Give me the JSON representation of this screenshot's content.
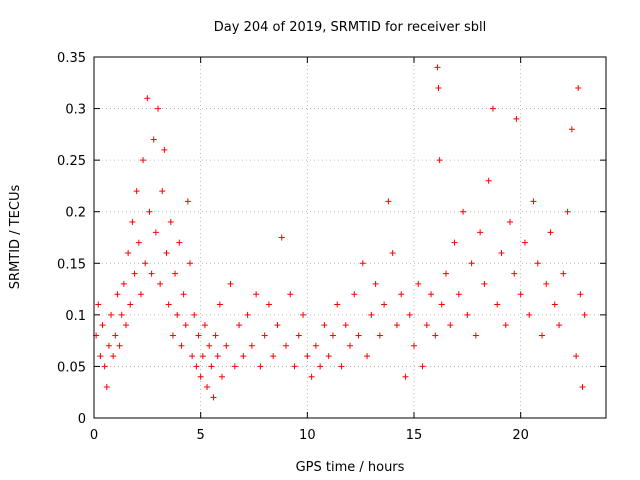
{
  "chart_data": {
    "type": "scatter",
    "title": "Day 204 of 2019, SRMTID for receiver sbll",
    "xlabel": "GPS time / hours",
    "ylabel": "SRMTID / TECUs",
    "xlim": [
      0,
      24
    ],
    "ylim": [
      0,
      0.35
    ],
    "xticks": [
      0,
      5,
      10,
      15,
      20
    ],
    "xtick_labels": [
      "0",
      "5",
      "10",
      "15",
      "20"
    ],
    "yticks": [
      0,
      0.05,
      0.1,
      0.15,
      0.2,
      0.25,
      0.3,
      0.35
    ],
    "ytick_labels": [
      "0",
      "0.05",
      "0.1",
      "0.15",
      "0.2",
      "0.25",
      "0.3",
      "0.35"
    ],
    "grid": true,
    "marker": "+",
    "color": "#ff0000",
    "series": [
      {
        "name": "SRMTID",
        "points": [
          [
            0.1,
            0.08
          ],
          [
            0.2,
            0.11
          ],
          [
            0.3,
            0.06
          ],
          [
            0.4,
            0.09
          ],
          [
            0.5,
            0.05
          ],
          [
            0.6,
            0.03
          ],
          [
            0.7,
            0.07
          ],
          [
            0.8,
            0.1
          ],
          [
            0.9,
            0.06
          ],
          [
            1.0,
            0.08
          ],
          [
            1.1,
            0.12
          ],
          [
            1.2,
            0.07
          ],
          [
            1.3,
            0.1
          ],
          [
            1.4,
            0.13
          ],
          [
            1.5,
            0.09
          ],
          [
            1.6,
            0.16
          ],
          [
            1.7,
            0.11
          ],
          [
            1.8,
            0.19
          ],
          [
            1.9,
            0.14
          ],
          [
            2.0,
            0.22
          ],
          [
            2.1,
            0.17
          ],
          [
            2.2,
            0.12
          ],
          [
            2.3,
            0.25
          ],
          [
            2.4,
            0.15
          ],
          [
            2.5,
            0.31
          ],
          [
            2.6,
            0.2
          ],
          [
            2.7,
            0.14
          ],
          [
            2.8,
            0.27
          ],
          [
            2.9,
            0.18
          ],
          [
            3.0,
            0.3
          ],
          [
            3.1,
            0.13
          ],
          [
            3.2,
            0.22
          ],
          [
            3.3,
            0.26
          ],
          [
            3.4,
            0.16
          ],
          [
            3.5,
            0.11
          ],
          [
            3.6,
            0.19
          ],
          [
            3.7,
            0.08
          ],
          [
            3.8,
            0.14
          ],
          [
            3.9,
            0.1
          ],
          [
            4.0,
            0.17
          ],
          [
            4.1,
            0.07
          ],
          [
            4.2,
            0.12
          ],
          [
            4.3,
            0.09
          ],
          [
            4.4,
            0.21
          ],
          [
            4.5,
            0.15
          ],
          [
            4.6,
            0.06
          ],
          [
            4.7,
            0.1
          ],
          [
            4.8,
            0.05
          ],
          [
            4.9,
            0.08
          ],
          [
            5.0,
            0.04
          ],
          [
            5.1,
            0.06
          ],
          [
            5.2,
            0.09
          ],
          [
            5.3,
            0.03
          ],
          [
            5.4,
            0.07
          ],
          [
            5.5,
            0.05
          ],
          [
            5.6,
            0.02
          ],
          [
            5.7,
            0.08
          ],
          [
            5.8,
            0.06
          ],
          [
            5.9,
            0.11
          ],
          [
            6.0,
            0.04
          ],
          [
            6.2,
            0.07
          ],
          [
            6.4,
            0.13
          ],
          [
            6.6,
            0.05
          ],
          [
            6.8,
            0.09
          ],
          [
            7.0,
            0.06
          ],
          [
            7.2,
            0.1
          ],
          [
            7.4,
            0.07
          ],
          [
            7.6,
            0.12
          ],
          [
            7.8,
            0.05
          ],
          [
            8.0,
            0.08
          ],
          [
            8.2,
            0.11
          ],
          [
            8.4,
            0.06
          ],
          [
            8.6,
            0.09
          ],
          [
            8.8,
            0.175
          ],
          [
            9.0,
            0.07
          ],
          [
            9.2,
            0.12
          ],
          [
            9.4,
            0.05
          ],
          [
            9.6,
            0.08
          ],
          [
            9.8,
            0.1
          ],
          [
            10.0,
            0.06
          ],
          [
            10.2,
            0.04
          ],
          [
            10.4,
            0.07
          ],
          [
            10.6,
            0.05
          ],
          [
            10.8,
            0.09
          ],
          [
            11.0,
            0.06
          ],
          [
            11.2,
            0.08
          ],
          [
            11.4,
            0.11
          ],
          [
            11.6,
            0.05
          ],
          [
            11.8,
            0.09
          ],
          [
            12.0,
            0.07
          ],
          [
            12.2,
            0.12
          ],
          [
            12.4,
            0.08
          ],
          [
            12.6,
            0.15
          ],
          [
            12.8,
            0.06
          ],
          [
            13.0,
            0.1
          ],
          [
            13.2,
            0.13
          ],
          [
            13.4,
            0.08
          ],
          [
            13.6,
            0.11
          ],
          [
            13.8,
            0.21
          ],
          [
            14.0,
            0.16
          ],
          [
            14.2,
            0.09
          ],
          [
            14.4,
            0.12
          ],
          [
            14.6,
            0.04
          ],
          [
            14.8,
            0.1
          ],
          [
            15.0,
            0.07
          ],
          [
            15.2,
            0.13
          ],
          [
            15.4,
            0.05
          ],
          [
            15.6,
            0.09
          ],
          [
            15.8,
            0.12
          ],
          [
            16.0,
            0.08
          ],
          [
            16.1,
            0.34
          ],
          [
            16.15,
            0.32
          ],
          [
            16.2,
            0.25
          ],
          [
            16.3,
            0.11
          ],
          [
            16.5,
            0.14
          ],
          [
            16.7,
            0.09
          ],
          [
            16.9,
            0.17
          ],
          [
            17.1,
            0.12
          ],
          [
            17.3,
            0.2
          ],
          [
            17.5,
            0.1
          ],
          [
            17.7,
            0.15
          ],
          [
            17.9,
            0.08
          ],
          [
            18.1,
            0.18
          ],
          [
            18.3,
            0.13
          ],
          [
            18.5,
            0.23
          ],
          [
            18.7,
            0.3
          ],
          [
            18.9,
            0.11
          ],
          [
            19.1,
            0.16
          ],
          [
            19.3,
            0.09
          ],
          [
            19.5,
            0.19
          ],
          [
            19.7,
            0.14
          ],
          [
            19.8,
            0.29
          ],
          [
            20.0,
            0.12
          ],
          [
            20.2,
            0.17
          ],
          [
            20.4,
            0.1
          ],
          [
            20.6,
            0.21
          ],
          [
            20.8,
            0.15
          ],
          [
            21.0,
            0.08
          ],
          [
            21.2,
            0.13
          ],
          [
            21.4,
            0.18
          ],
          [
            21.6,
            0.11
          ],
          [
            21.8,
            0.09
          ],
          [
            22.0,
            0.14
          ],
          [
            22.2,
            0.2
          ],
          [
            22.4,
            0.28
          ],
          [
            22.6,
            0.06
          ],
          [
            22.7,
            0.32
          ],
          [
            22.8,
            0.12
          ],
          [
            22.9,
            0.03
          ],
          [
            23.0,
            0.1
          ]
        ]
      }
    ]
  }
}
